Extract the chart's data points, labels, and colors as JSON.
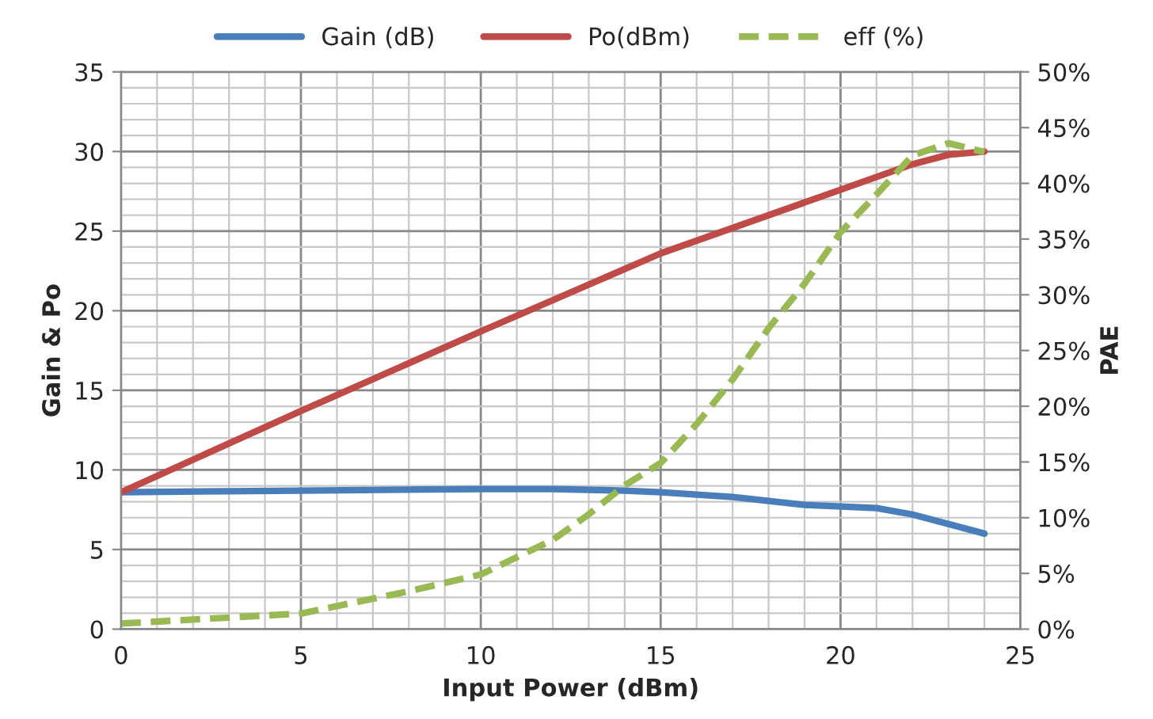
{
  "chart_data": {
    "type": "line",
    "xlabel": "Input Power (dBm)",
    "ylabel": "Gain & Po",
    "y2label": "PAE",
    "xlim": [
      0,
      25
    ],
    "xticks": [
      0,
      5,
      10,
      15,
      20,
      25
    ],
    "ylim": [
      0,
      35
    ],
    "yticks": [
      0,
      5,
      10,
      15,
      20,
      25,
      30,
      35
    ],
    "y2lim": [
      0,
      50
    ],
    "y2ticks": [
      {
        "value": 0,
        "label": "0%"
      },
      {
        "value": 5,
        "label": "5%"
      },
      {
        "value": 10,
        "label": "10%"
      },
      {
        "value": 15,
        "label": "15%"
      },
      {
        "value": 20,
        "label": "20%"
      },
      {
        "value": 25,
        "label": "25%"
      },
      {
        "value": 30,
        "label": "30%"
      },
      {
        "value": 35,
        "label": "35%"
      },
      {
        "value": 40,
        "label": "40%"
      },
      {
        "value": 45,
        "label": "45%"
      },
      {
        "value": 50,
        "label": "50%"
      }
    ],
    "grid": true,
    "legend": "top",
    "marker": "none",
    "series": [
      {
        "name": "Gain (dB)",
        "color": "#4a7ebb",
        "line_style": "solid",
        "x": [
          0,
          5,
          10,
          12,
          14,
          15,
          17,
          19,
          21,
          22,
          23,
          24
        ],
        "values": [
          8.6,
          8.7,
          8.8,
          8.8,
          8.7,
          8.6,
          8.3,
          7.8,
          7.6,
          7.2,
          6.6,
          6.0
        ]
      },
      {
        "name": "Po(dBm)",
        "color": "#be4b48",
        "line_style": "solid",
        "x": [
          0,
          5,
          10,
          15,
          20,
          22,
          23,
          24
        ],
        "values": [
          8.6,
          13.7,
          18.7,
          23.6,
          27.6,
          29.2,
          29.8,
          30.0
        ]
      },
      {
        "name": "eff (%)",
        "color": "#98b954",
        "line_style": "dashed",
        "axis": "y2",
        "x": [
          0,
          5,
          8,
          10,
          12,
          13,
          14,
          15,
          16,
          17,
          18,
          19,
          20,
          21,
          22,
          23,
          24
        ],
        "values": [
          0.5,
          1.4,
          3.4,
          4.9,
          8.0,
          10.3,
          12.9,
          14.9,
          18.4,
          22.4,
          27.0,
          31.0,
          35.6,
          39.0,
          42.5,
          43.6,
          42.8
        ]
      }
    ]
  }
}
